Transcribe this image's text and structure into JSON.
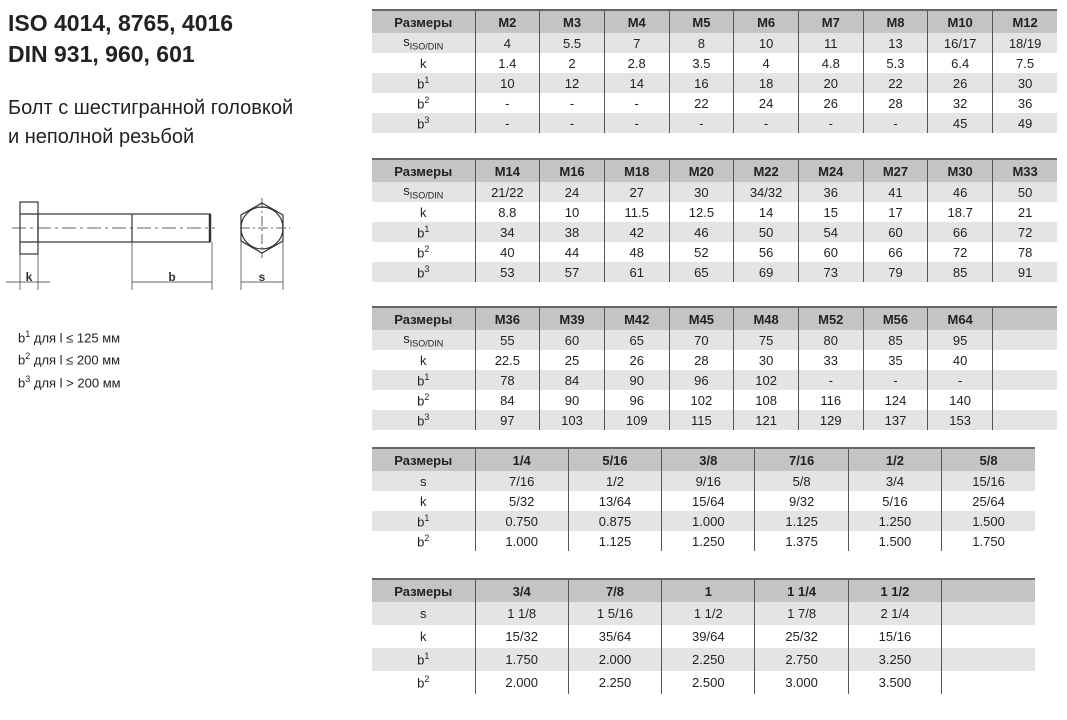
{
  "title": [
    "ISO 4014, 8765, 4016",
    "DIN 931, 960, 601"
  ],
  "subtitle": [
    "Болт с шестигранной головкой",
    "и неполной резьбой"
  ],
  "drawing": {
    "labels": [
      "k",
      "b",
      "s"
    ]
  },
  "notes": [
    {
      "sym": "b",
      "sup": "1",
      "text": " для l ≤ 125 мм"
    },
    {
      "sym": "b",
      "sup": "2",
      "text": " для l ≤ 200 мм"
    },
    {
      "sym": "b",
      "sup": "3",
      "text": " для l > 200 мм"
    }
  ],
  "tables": [
    {
      "header": [
        "Размеры",
        "M2",
        "M3",
        "M4",
        "M5",
        "M6",
        "M7",
        "M8",
        "M10",
        "M12"
      ],
      "rows": [
        {
          "label": "s",
          "sub": "ISO/DIN",
          "values": [
            "4",
            "5.5",
            "7",
            "8",
            "10",
            "11",
            "13",
            "16/17",
            "18/19"
          ]
        },
        {
          "label": "k",
          "values": [
            "1.4",
            "2",
            "2.8",
            "3.5",
            "4",
            "4.8",
            "5.3",
            "6.4",
            "7.5"
          ]
        },
        {
          "label": "b",
          "sup": "1",
          "values": [
            "10",
            "12",
            "14",
            "16",
            "18",
            "20",
            "22",
            "26",
            "30"
          ]
        },
        {
          "label": "b",
          "sup": "2",
          "values": [
            "-",
            "-",
            "-",
            "22",
            "24",
            "26",
            "28",
            "32",
            "36"
          ]
        },
        {
          "label": "b",
          "sup": "3",
          "values": [
            "-",
            "-",
            "-",
            "-",
            "-",
            "-",
            "-",
            "45",
            "49"
          ]
        }
      ]
    },
    {
      "header": [
        "Размеры",
        "M14",
        "M16",
        "M18",
        "M20",
        "M22",
        "M24",
        "M27",
        "M30",
        "M33"
      ],
      "rows": [
        {
          "label": "s",
          "sub": "ISO/DIN",
          "values": [
            "21/22",
            "24",
            "27",
            "30",
            "34/32",
            "36",
            "41",
            "46",
            "50"
          ]
        },
        {
          "label": "k",
          "values": [
            "8.8",
            "10",
            "11.5",
            "12.5",
            "14",
            "15",
            "17",
            "18.7",
            "21"
          ]
        },
        {
          "label": "b",
          "sup": "1",
          "values": [
            "34",
            "38",
            "42",
            "46",
            "50",
            "54",
            "60",
            "66",
            "72"
          ]
        },
        {
          "label": "b",
          "sup": "2",
          "values": [
            "40",
            "44",
            "48",
            "52",
            "56",
            "60",
            "66",
            "72",
            "78"
          ]
        },
        {
          "label": "b",
          "sup": "3",
          "values": [
            "53",
            "57",
            "61",
            "65",
            "69",
            "73",
            "79",
            "85",
            "91"
          ]
        }
      ]
    },
    {
      "header": [
        "Размеры",
        "M36",
        "M39",
        "M42",
        "M45",
        "M48",
        "M52",
        "M56",
        "M64",
        ""
      ],
      "rows": [
        {
          "label": "s",
          "sub": "ISO/DIN",
          "values": [
            "55",
            "60",
            "65",
            "70",
            "75",
            "80",
            "85",
            "95",
            ""
          ]
        },
        {
          "label": "k",
          "values": [
            "22.5",
            "25",
            "26",
            "28",
            "30",
            "33",
            "35",
            "40",
            ""
          ]
        },
        {
          "label": "b",
          "sup": "1",
          "values": [
            "78",
            "84",
            "90",
            "96",
            "102",
            "-",
            "-",
            "-",
            ""
          ]
        },
        {
          "label": "b",
          "sup": "2",
          "values": [
            "84",
            "90",
            "96",
            "102",
            "108",
            "116",
            "124",
            "140",
            ""
          ]
        },
        {
          "label": "b",
          "sup": "3",
          "values": [
            "97",
            "103",
            "109",
            "115",
            "121",
            "129",
            "137",
            "153",
            ""
          ]
        }
      ]
    },
    {
      "header": [
        "Размеры",
        "1/4",
        "5/16",
        "3/8",
        "7/16",
        "1/2",
        "5/8"
      ],
      "rows": [
        {
          "label": "s",
          "values": [
            "7/16",
            "1/2",
            "9/16",
            "5/8",
            "3/4",
            "15/16"
          ]
        },
        {
          "label": "k",
          "values": [
            "5/32",
            "13/64",
            "15/64",
            "9/32",
            "5/16",
            "25/64"
          ]
        },
        {
          "label": "b",
          "sup": "1",
          "values": [
            "0.750",
            "0.875",
            "1.000",
            "1.125",
            "1.250",
            "1.500"
          ]
        },
        {
          "label": "b",
          "sup": "2",
          "values": [
            "1.000",
            "1.125",
            "1.250",
            "1.375",
            "1.500",
            "1.750"
          ]
        }
      ]
    },
    {
      "header": [
        "Размеры",
        "3/4",
        "7/8",
        "1",
        "1 1/4",
        "1 1/2",
        ""
      ],
      "rows": [
        {
          "label": "s",
          "values": [
            "1 1/8",
            "1 5/16",
            "1 1/2",
            "1 7/8",
            "2 1/4",
            ""
          ]
        },
        {
          "label": "k",
          "values": [
            "15/32",
            "35/64",
            "39/64",
            "25/32",
            "15/16",
            ""
          ]
        },
        {
          "label": "b",
          "sup": "1",
          "values": [
            "1.750",
            "2.000",
            "2.250",
            "2.750",
            "3.250",
            ""
          ]
        },
        {
          "label": "b",
          "sup": "2",
          "values": [
            "2.000",
            "2.250",
            "2.500",
            "3.000",
            "3.500",
            ""
          ]
        }
      ]
    }
  ]
}
